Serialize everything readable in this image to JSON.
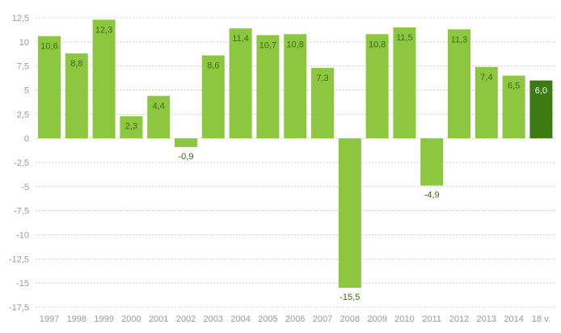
{
  "chart_data": {
    "type": "bar",
    "title": "",
    "xlabel": "",
    "ylabel": "",
    "categories": [
      "1997",
      "1998",
      "1999",
      "2000",
      "2001",
      "2002",
      "2003",
      "2004",
      "2005",
      "2006",
      "2007",
      "2008",
      "2009",
      "2010",
      "2011",
      "2012",
      "2013",
      "2014",
      "18 v."
    ],
    "values": [
      10.6,
      8.8,
      12.3,
      2.3,
      4.4,
      -0.9,
      8.6,
      11.4,
      10.7,
      10.8,
      7.3,
      -15.5,
      10.8,
      11.5,
      -4.9,
      11.3,
      7.4,
      6.5,
      6.0
    ],
    "value_labels": [
      "10,6",
      "8,8",
      "12,3",
      "2,3",
      "4,4",
      "-0,9",
      "8,6",
      "11,4",
      "10,7",
      "10,8",
      "7,3",
      "-15,5",
      "10,8",
      "11,5",
      "-4,9",
      "11,3",
      "7,4",
      "6,5",
      "6,0"
    ],
    "highlight_index": 18,
    "ylim": [
      -17.5,
      12.5
    ],
    "yticks": [
      12.5,
      10,
      7.5,
      5,
      2.5,
      0,
      -2.5,
      -5,
      -7.5,
      -10,
      -12.5,
      -15,
      -17.5
    ],
    "ytick_labels": [
      "12,5",
      "10",
      "7,5",
      "5",
      "2,5",
      "0",
      "-2,5",
      "-5",
      "-7,5",
      "-10",
      "-12,5",
      "-15",
      "-17,5"
    ],
    "grid": "horizontal dashed",
    "legend": "none",
    "colors": {
      "bar": "#8dc63f",
      "highlight_bar": "#3c7a12",
      "label_inside": "#3b6d13",
      "label_highlight": "#ffffff",
      "label_outside": "#3b6d13",
      "grid": "#d0d0d0",
      "tick": "#9a9a9a"
    }
  }
}
